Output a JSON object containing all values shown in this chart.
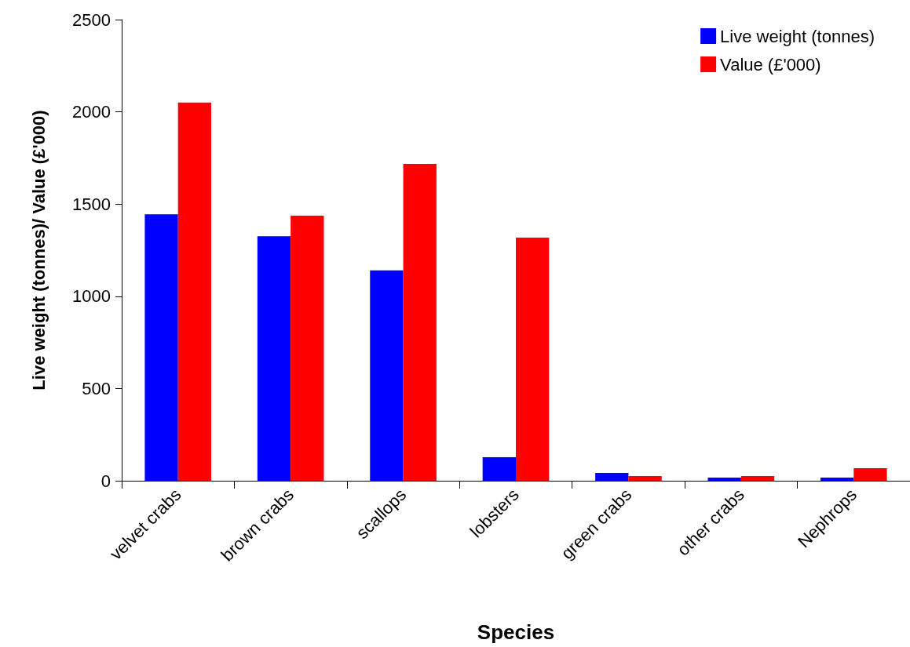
{
  "chart_data": {
    "type": "bar",
    "xlabel": "Species",
    "ylabel": "Live weight (tonnes)/ Value (£'000)",
    "categories": [
      "velvet crabs",
      "brown crabs",
      "scallops",
      "lobsters",
      "green crabs",
      "other crabs",
      "Nephrops"
    ],
    "series": [
      {
        "name": "Live weight (tonnes)",
        "color": "#0000ff",
        "values": [
          1445,
          1325,
          1140,
          128,
          43,
          17,
          17
        ]
      },
      {
        "name": "Value (£'000)",
        "color": "#ff0000",
        "values": [
          2050,
          1437,
          1718,
          1318,
          26,
          26,
          68
        ]
      }
    ],
    "ylim": [
      0,
      2500
    ],
    "yticks": [
      0,
      500,
      1000,
      1500,
      2000,
      2500
    ],
    "grid": false,
    "legend": "top right"
  }
}
